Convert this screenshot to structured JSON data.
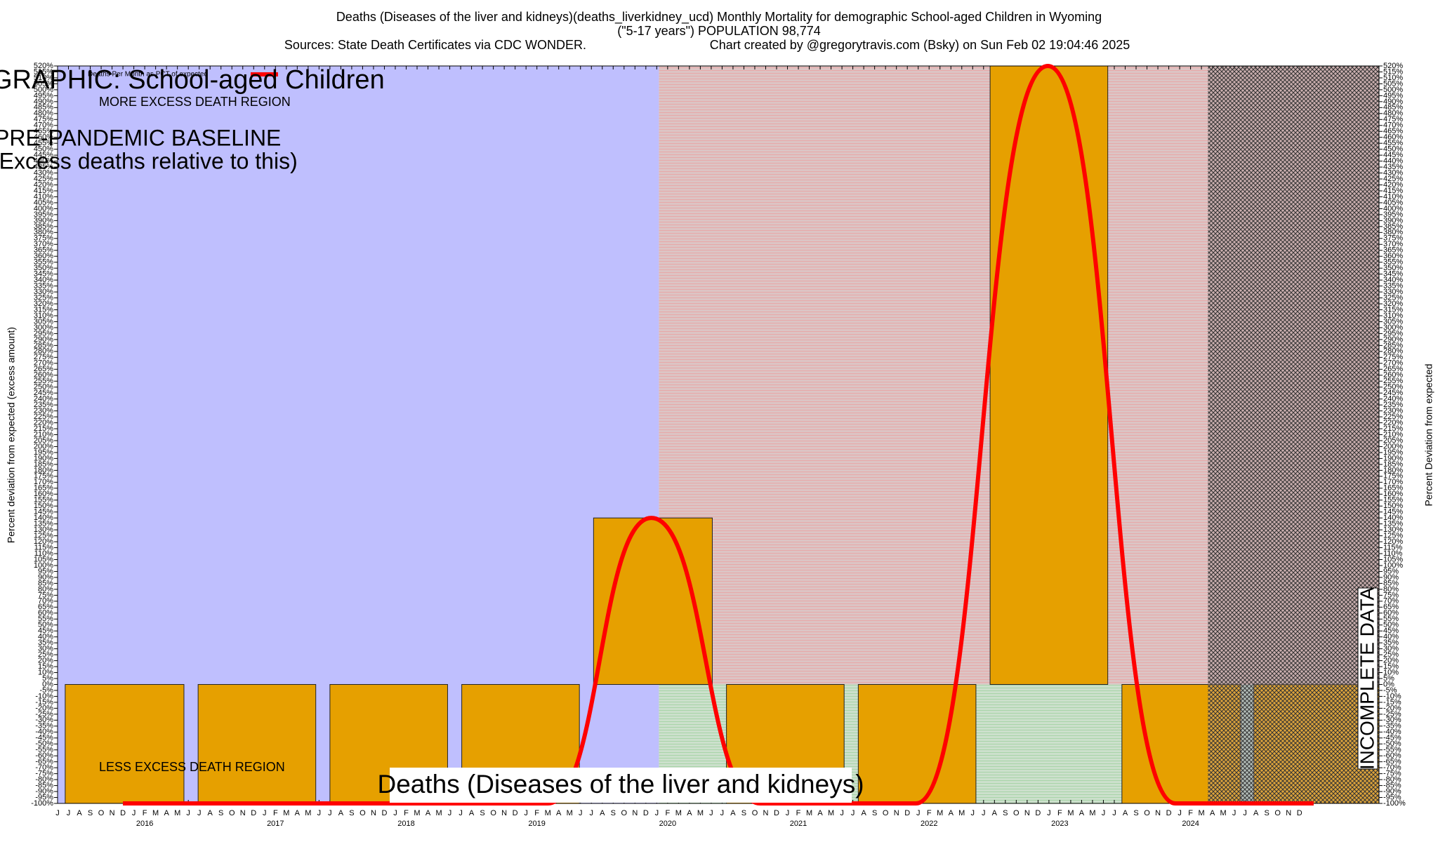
{
  "chart_data": {
    "type": "bar",
    "title": "Deaths (Diseases of the liver and kidneys)(deaths_liverkidney_ucd) Monthly Mortality for demographic School-aged Children in Wyoming",
    "subtitle": "(\"5-17 years\") POPULATION 98,774",
    "sources": "Sources: State Death Certificates via CDC WONDER.",
    "credit": "Chart created by @gregorytravis.com (Bsky) on Sun Feb 02 19:04:46 2025",
    "annotations": [
      "GRAPHIC: School-aged Children",
      "MORE EXCESS DEATH REGION",
      "PRE-PANDEMIC BASELINE",
      "(Excess deaths relative to this)",
      "LESS EXCESS DEATH REGION",
      "Deaths (Diseases of the liver and kidneys)",
      "INCOMPLETE DATA"
    ],
    "ylabel": "Percent deviation from expected (excess amount)",
    "y2label": "Percent Deviation from expected",
    "categories": [
      "J",
      "J",
      "A",
      "S",
      "O",
      "N",
      "D",
      "J",
      "F",
      "M",
      "A",
      "M",
      "J",
      "J",
      "A",
      "S",
      "O",
      "N",
      "D",
      "J",
      "F",
      "M",
      "A",
      "M",
      "J",
      "J",
      "A",
      "S",
      "O",
      "N",
      "D",
      "J",
      "F",
      "M",
      "A",
      "M",
      "J",
      "J",
      "A",
      "S",
      "O",
      "N",
      "D",
      "J",
      "F",
      "M",
      "A",
      "M",
      "J",
      "J",
      "A",
      "S",
      "O",
      "N",
      "D",
      "J",
      "F",
      "M",
      "A",
      "M",
      "J",
      "J",
      "A",
      "S",
      "O",
      "N",
      "D",
      "J",
      "F",
      "M",
      "A",
      "M",
      "J",
      "J",
      "A",
      "S",
      "O",
      "N",
      "D",
      "J",
      "F",
      "M",
      "A",
      "M",
      "J",
      "J",
      "A",
      "S",
      "O",
      "N",
      "D",
      "J",
      "F",
      "M",
      "A",
      "M",
      "J",
      "J",
      "A",
      "S",
      "O",
      "N",
      "D",
      "J",
      "F",
      "M",
      "A",
      "M",
      "J",
      "J",
      "A",
      "S",
      "O",
      "N",
      "D"
    ],
    "year_labels": [
      "2016",
      "2017",
      "2018",
      "2019",
      "2020",
      "2021",
      "2022",
      "2023",
      "2024"
    ],
    "xlim": [
      0,
      121.3
    ],
    "ylim": [
      -100,
      520
    ],
    "pandemic_start": 55.2,
    "incomplete_start": 105.6,
    "bars": {
      "color": "#e6a000",
      "x0": [
        0.7,
        12.9,
        25.0,
        37.1,
        49.2,
        61.4,
        73.5,
        85.6,
        97.7,
        109.8
      ],
      "x1": [
        11.6,
        23.7,
        35.8,
        47.9,
        60.1,
        72.2,
        84.3,
        96.4,
        108.6,
        121.3
      ],
      "values": [
        -100,
        -100,
        -100,
        -100,
        140,
        -100,
        -100,
        520,
        -100,
        -100
      ]
    },
    "series": [
      {
        "name": "Deaths Per Month as PCT of expected",
        "color": "#ff0000",
        "x": [
          6,
          45,
          54.5,
          64.5,
          78.8,
          90.9,
          102.6,
          115.3
        ],
        "values": [
          -100,
          -100,
          140,
          -100,
          -100,
          520,
          -100,
          -100
        ]
      }
    ],
    "yticks": [
      {
        "value": -100,
        "label": "-100%"
      },
      {
        "value": -95,
        "label": "-95%"
      },
      {
        "value": -90,
        "label": "-90%"
      },
      {
        "value": -85,
        "label": "-85%"
      },
      {
        "value": -80,
        "label": "-80%"
      },
      {
        "value": -75,
        "label": "-75%"
      },
      {
        "value": -70,
        "label": "-70%"
      },
      {
        "value": -65,
        "label": "-65%"
      },
      {
        "value": -60,
        "label": "-60%"
      },
      {
        "value": -55,
        "label": "-55%"
      },
      {
        "value": -50,
        "label": "-50%"
      },
      {
        "value": -45,
        "label": "-45%"
      },
      {
        "value": -40,
        "label": "-40%"
      },
      {
        "value": -35,
        "label": "-35%"
      },
      {
        "value": -30,
        "label": "-30%"
      },
      {
        "value": -25,
        "label": "-25%"
      },
      {
        "value": -20,
        "label": "-20%"
      },
      {
        "value": -15,
        "label": "-15%"
      },
      {
        "value": -10,
        "label": "-10%"
      },
      {
        "value": -5,
        "label": "-5%"
      },
      {
        "value": 0,
        "label": "0%"
      },
      {
        "value": 5,
        "label": "5%"
      },
      {
        "value": 10,
        "label": "10%"
      },
      {
        "value": 15,
        "label": "15%"
      },
      {
        "value": 20,
        "label": "20%"
      },
      {
        "value": 25,
        "label": "25%"
      },
      {
        "value": 30,
        "label": "30%"
      },
      {
        "value": 35,
        "label": "35%"
      },
      {
        "value": 40,
        "label": "40%"
      },
      {
        "value": 45,
        "label": "45%"
      },
      {
        "value": 50,
        "label": "50%"
      },
      {
        "value": 55,
        "label": "55%"
      },
      {
        "value": 60,
        "label": "60%"
      },
      {
        "value": 65,
        "label": "65%"
      },
      {
        "value": 70,
        "label": "70%"
      },
      {
        "value": 75,
        "label": "75%"
      },
      {
        "value": 80,
        "label": "80%"
      },
      {
        "value": 85,
        "label": "85%"
      },
      {
        "value": 90,
        "label": "90%"
      },
      {
        "value": 95,
        "label": "95%"
      },
      {
        "value": 100,
        "label": "100%"
      },
      {
        "value": 105,
        "label": "105%"
      },
      {
        "value": 110,
        "label": "110%"
      },
      {
        "value": 115,
        "label": "115%"
      },
      {
        "value": 120,
        "label": "120%"
      },
      {
        "value": 125,
        "label": "125%"
      },
      {
        "value": 130,
        "label": "130%"
      },
      {
        "value": 135,
        "label": "135%"
      },
      {
        "value": 140,
        "label": "140%"
      },
      {
        "value": 145,
        "label": "145%"
      },
      {
        "value": 150,
        "label": "150%"
      },
      {
        "value": 155,
        "label": "155%"
      },
      {
        "value": 160,
        "label": "160%"
      },
      {
        "value": 165,
        "label": "165%"
      },
      {
        "value": 170,
        "label": "170%"
      },
      {
        "value": 175,
        "label": "175%"
      },
      {
        "value": 180,
        "label": "180%"
      },
      {
        "value": 185,
        "label": "185%"
      },
      {
        "value": 190,
        "label": "190%"
      },
      {
        "value": 195,
        "label": "195%"
      },
      {
        "value": 200,
        "label": "200%"
      },
      {
        "value": 205,
        "label": "205%"
      },
      {
        "value": 210,
        "label": "210%"
      },
      {
        "value": 215,
        "label": "215%"
      },
      {
        "value": 220,
        "label": "220%"
      },
      {
        "value": 225,
        "label": "225%"
      },
      {
        "value": 230,
        "label": "230%"
      },
      {
        "value": 235,
        "label": "235%"
      },
      {
        "value": 240,
        "label": "240%"
      },
      {
        "value": 245,
        "label": "245%"
      },
      {
        "value": 250,
        "label": "250%"
      },
      {
        "value": 255,
        "label": "255%"
      },
      {
        "value": 260,
        "label": "260%"
      },
      {
        "value": 265,
        "label": "265%"
      },
      {
        "value": 270,
        "label": "270%"
      },
      {
        "value": 275,
        "label": "275%"
      },
      {
        "value": 280,
        "label": "280%"
      },
      {
        "value": 285,
        "label": "285%"
      },
      {
        "value": 290,
        "label": "290%"
      },
      {
        "value": 295,
        "label": "295%"
      },
      {
        "value": 300,
        "label": "300%"
      },
      {
        "value": 305,
        "label": "305%"
      },
      {
        "value": 310,
        "label": "310%"
      },
      {
        "value": 315,
        "label": "315%"
      },
      {
        "value": 320,
        "label": "320%"
      },
      {
        "value": 325,
        "label": "325%"
      },
      {
        "value": 330,
        "label": "330%"
      },
      {
        "value": 335,
        "label": "335%"
      },
      {
        "value": 340,
        "label": "340%"
      },
      {
        "value": 345,
        "label": "345%"
      },
      {
        "value": 350,
        "label": "350%"
      },
      {
        "value": 355,
        "label": "355%"
      },
      {
        "value": 360,
        "label": "360%"
      },
      {
        "value": 365,
        "label": "365%"
      },
      {
        "value": 370,
        "label": "370%"
      },
      {
        "value": 375,
        "label": "375%"
      },
      {
        "value": 380,
        "label": "380%"
      },
      {
        "value": 385,
        "label": "385%"
      },
      {
        "value": 390,
        "label": "390%"
      },
      {
        "value": 395,
        "label": "395%"
      },
      {
        "value": 400,
        "label": "400%"
      },
      {
        "value": 405,
        "label": "405%"
      },
      {
        "value": 410,
        "label": "410%"
      },
      {
        "value": 415,
        "label": "415%"
      },
      {
        "value": 420,
        "label": "420%"
      },
      {
        "value": 425,
        "label": "425%"
      },
      {
        "value": 430,
        "label": "430%"
      },
      {
        "value": 435,
        "label": "435%"
      },
      {
        "value": 440,
        "label": "440%"
      },
      {
        "value": 445,
        "label": "445%"
      },
      {
        "value": 450,
        "label": "450%"
      },
      {
        "value": 455,
        "label": "455%"
      },
      {
        "value": 460,
        "label": "460%"
      },
      {
        "value": 465,
        "label": "465%"
      },
      {
        "value": 470,
        "label": "470%"
      },
      {
        "value": 475,
        "label": "475%"
      },
      {
        "value": 480,
        "label": "480%"
      },
      {
        "value": 485,
        "label": "485%"
      },
      {
        "value": 490,
        "label": "490%"
      },
      {
        "value": 495,
        "label": "495%"
      },
      {
        "value": 500,
        "label": "500%"
      },
      {
        "value": 505,
        "label": "505%"
      },
      {
        "value": 510,
        "label": "510%"
      },
      {
        "value": 515,
        "label": "515%"
      },
      {
        "value": 520,
        "label": "520%"
      }
    ]
  }
}
